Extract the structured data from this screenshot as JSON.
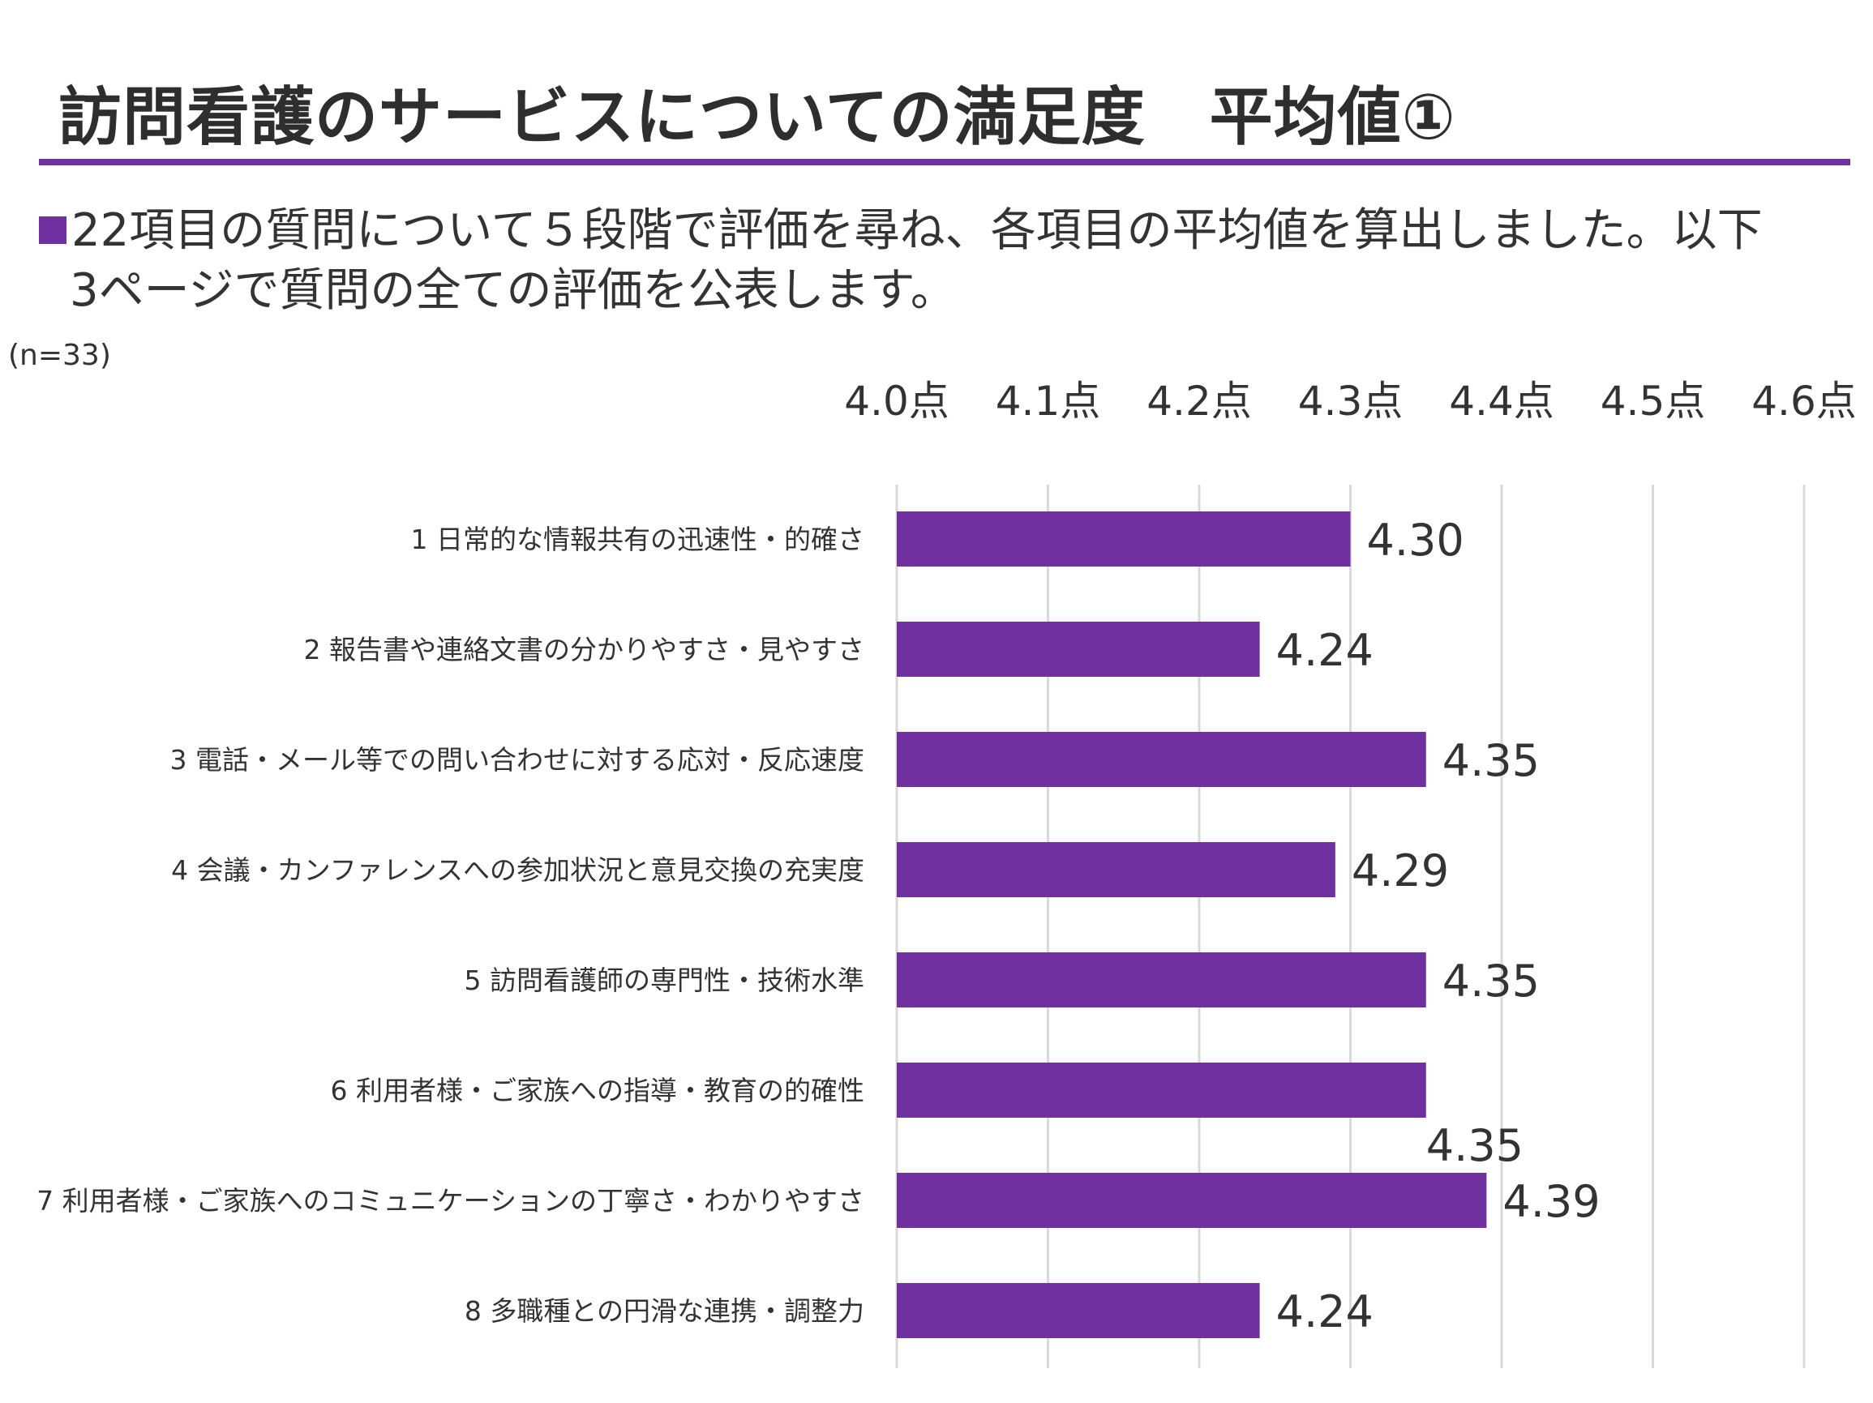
{
  "page": {
    "title": "訪問看護のサービスについての満足度　平均値①",
    "description_line1": "22項目の質問について５段階で評価を尋ね、各項目の平均値を算出しました。以下",
    "description_line2": "3ページで質問の全ての評価を公表します。",
    "sample_size": "(n=33)",
    "accent_color": "#7030a0"
  },
  "chart_data": {
    "type": "bar",
    "orientation": "horizontal",
    "categories": [
      "1 日常的な情報共有の迅速性・的確さ",
      "2 報告書や連絡文書の分かりやすさ・見やすさ",
      "3 電話・メール等での問い合わせに対する応対・反応速度",
      "4 会議・カンファレンスへの参加状況と意見交換の充実度",
      "5 訪問看護師の専門性・技術水準",
      "6 利用者様・ご家族への指導・教育の的確性",
      "7 利用者様・ご家族へのコミュニケーションの丁寧さ・わかりやすさ",
      "8 多職種との円滑な連携・調整力"
    ],
    "values": [
      4.3,
      4.24,
      4.35,
      4.29,
      4.35,
      4.35,
      4.39,
      4.24
    ],
    "value_labels": [
      "4.30",
      "4.24",
      "4.35",
      "4.29",
      "4.35",
      "4.35",
      "4.39",
      "4.24"
    ],
    "xlim": [
      4.0,
      4.6
    ],
    "ticks": [
      4.0,
      4.1,
      4.2,
      4.3,
      4.4,
      4.5,
      4.6
    ],
    "tick_labels": [
      "4.0点",
      "4.1点",
      "4.2点",
      "4.3点",
      "4.4点",
      "4.5点",
      "4.6点"
    ],
    "axis_position": "top",
    "grid": true,
    "bar_color": "#7030a0",
    "grid_color": "#d9d9d9"
  }
}
